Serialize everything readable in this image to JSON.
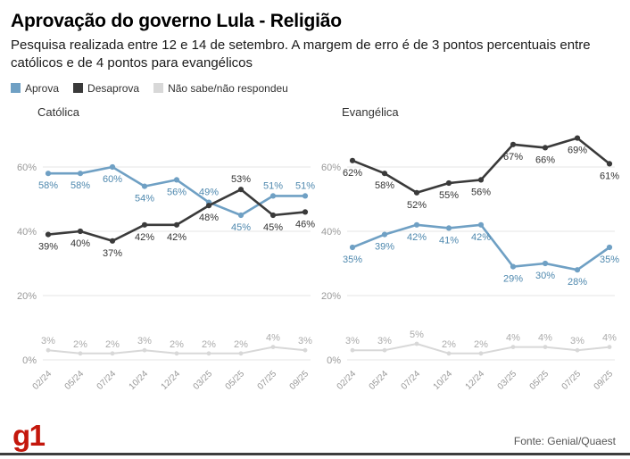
{
  "header": {
    "title": "Aprovação do governo Lula - Religião",
    "subtitle": "Pesquisa realizada entre 12 e 14 de setembro. A margem de erro é de 3 pontos percentuais entre católicos e de 4 pontos para evangélicos"
  },
  "legend": {
    "items": [
      {
        "label": "Aprova",
        "color": "#6fa0c4"
      },
      {
        "label": "Desaprova",
        "color": "#3a3a3a"
      },
      {
        "label": "Não sabe/não respondeu",
        "color": "#d8d8d8"
      }
    ]
  },
  "chart_data": [
    {
      "type": "line",
      "title": "Católica",
      "x": [
        "02/24",
        "05/24",
        "07/24",
        "10/24",
        "12/24",
        "03/25",
        "05/25",
        "07/25",
        "09/25"
      ],
      "series": [
        {
          "name": "Aprova",
          "color": "#6fa0c4",
          "label_color": "#4e88ae",
          "values": [
            58,
            58,
            60,
            54,
            56,
            49,
            45,
            51,
            51
          ]
        },
        {
          "name": "Desaprova",
          "color": "#3a3a3a",
          "label_color": "#333333",
          "values": [
            39,
            40,
            37,
            42,
            42,
            48,
            53,
            45,
            46
          ]
        },
        {
          "name": "Não sabe/não respondeu",
          "color": "#d8d8d8",
          "label_color": "#ababab",
          "values": [
            3,
            2,
            2,
            3,
            2,
            2,
            2,
            4,
            3
          ]
        }
      ],
      "yticks": [
        0,
        20,
        40,
        60
      ],
      "ylim": [
        0,
        75
      ],
      "grid": true,
      "legend_position": "top-shared"
    },
    {
      "type": "line",
      "title": "Evangélica",
      "x": [
        "02/24",
        "05/24",
        "07/24",
        "10/24",
        "12/24",
        "03/25",
        "05/25",
        "07/25",
        "09/25"
      ],
      "series": [
        {
          "name": "Aprova",
          "color": "#6fa0c4",
          "label_color": "#4e88ae",
          "values": [
            35,
            39,
            42,
            41,
            42,
            29,
            30,
            28,
            35
          ]
        },
        {
          "name": "Desaprova",
          "color": "#3a3a3a",
          "label_color": "#333333",
          "values": [
            62,
            58,
            52,
            55,
            56,
            67,
            66,
            69,
            61
          ]
        },
        {
          "name": "Não sabe/não respondeu",
          "color": "#d8d8d8",
          "label_color": "#ababab",
          "values": [
            3,
            3,
            5,
            2,
            2,
            4,
            4,
            3,
            4
          ]
        }
      ],
      "yticks": [
        0,
        20,
        40,
        60
      ],
      "ylim": [
        0,
        75
      ],
      "grid": true,
      "legend_position": "top-shared"
    }
  ],
  "footer": {
    "logo": "g1",
    "logo_color": "#c4170c",
    "source": "Fonte: Genial/Quaest"
  }
}
